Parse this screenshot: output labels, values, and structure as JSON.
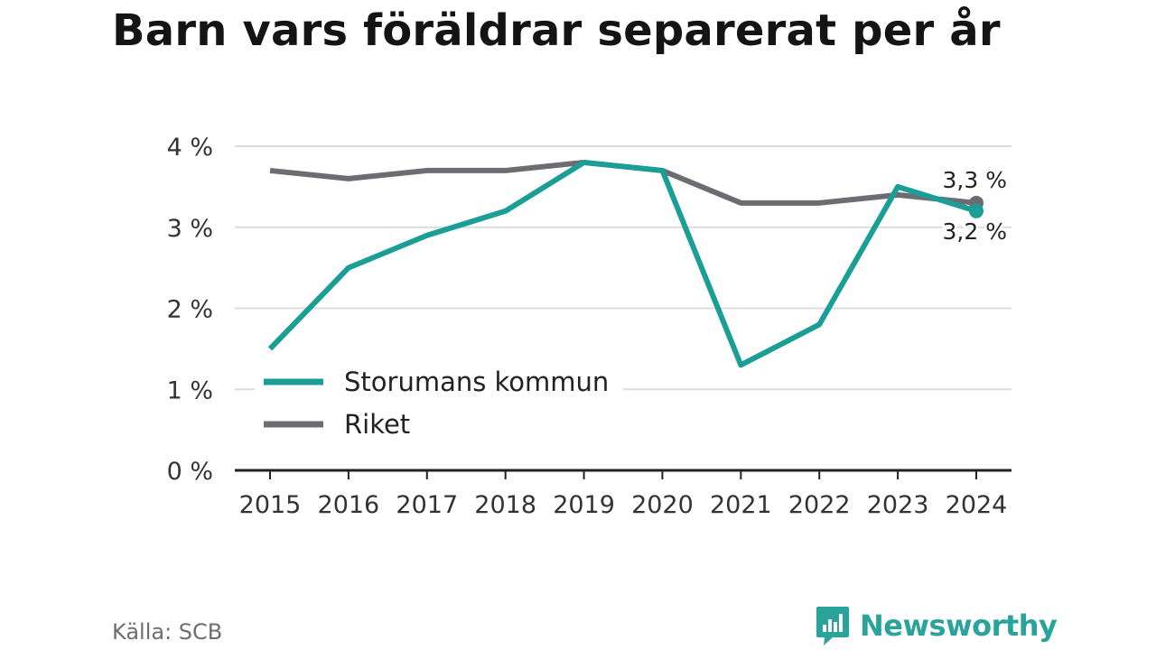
{
  "title": "Barn vars föräldrar separerat per år",
  "source": "Källa: SCB",
  "brand": {
    "name": "Newsworthy",
    "icon": "newsworthy-logo-icon",
    "color": "#2aa39a"
  },
  "chart_data": {
    "type": "line",
    "title": "Barn vars föräldrar separerat per år",
    "x": [
      "2015",
      "2016",
      "2017",
      "2018",
      "2019",
      "2020",
      "2021",
      "2022",
      "2023",
      "2024"
    ],
    "ylim": [
      0,
      4
    ],
    "y_ticks": [
      0,
      1,
      2,
      3,
      4
    ],
    "y_tick_labels": [
      "0 %",
      "1 %",
      "2 %",
      "3 %",
      "4 %"
    ],
    "grid": true,
    "legend_position": "bottom-left",
    "series": [
      {
        "name": "Storumans kommun",
        "color": "#1a9e96",
        "values": [
          1.5,
          2.5,
          2.9,
          3.2,
          3.8,
          3.7,
          1.3,
          1.8,
          3.5,
          3.2
        ],
        "end_label": "3,2 %"
      },
      {
        "name": "Riket",
        "color": "#6d6c72",
        "values": [
          3.7,
          3.6,
          3.7,
          3.7,
          3.8,
          3.7,
          3.3,
          3.3,
          3.4,
          3.3
        ],
        "end_label": "3,3 %"
      }
    ]
  }
}
